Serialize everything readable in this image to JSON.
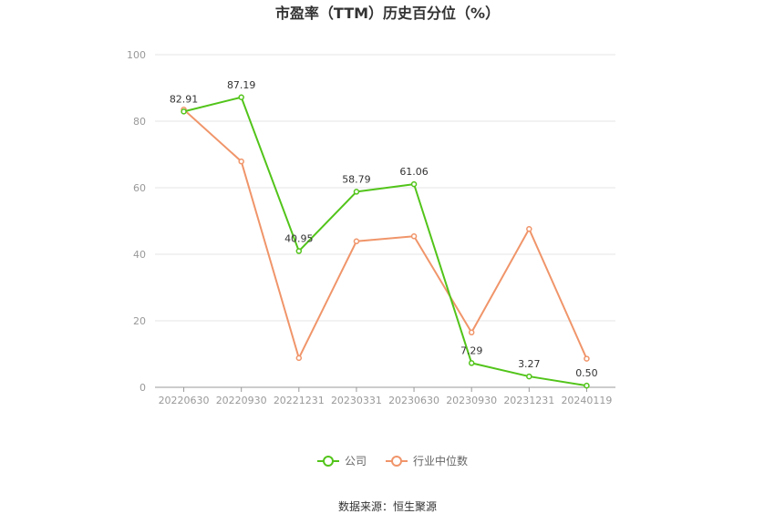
{
  "chart_data": {
    "type": "line",
    "title": "市盈率（TTM）历史百分位（%）",
    "categories": [
      "20220630",
      "20220930",
      "20221231",
      "20230331",
      "20230630",
      "20230930",
      "20231231",
      "20240119"
    ],
    "ylim": [
      0,
      100
    ],
    "yticks": [
      0,
      20,
      40,
      60,
      80,
      100
    ],
    "grid": true,
    "legend_position": "bottom",
    "series": [
      {
        "name": "公司",
        "color": "#52c41a",
        "values": [
          82.91,
          87.19,
          40.95,
          58.79,
          61.06,
          7.29,
          3.27,
          0.5
        ],
        "labels": [
          "82.91",
          "87.19",
          "40.95",
          "58.79",
          "61.06",
          "7.29",
          "3.27",
          "0.50"
        ]
      },
      {
        "name": "行业中位数",
        "color": "#f0956a",
        "values": [
          83.5,
          67.9,
          8.8,
          43.9,
          45.4,
          16.5,
          47.6,
          8.6
        ]
      }
    ]
  },
  "source_text": "数据来源：恒生聚源"
}
